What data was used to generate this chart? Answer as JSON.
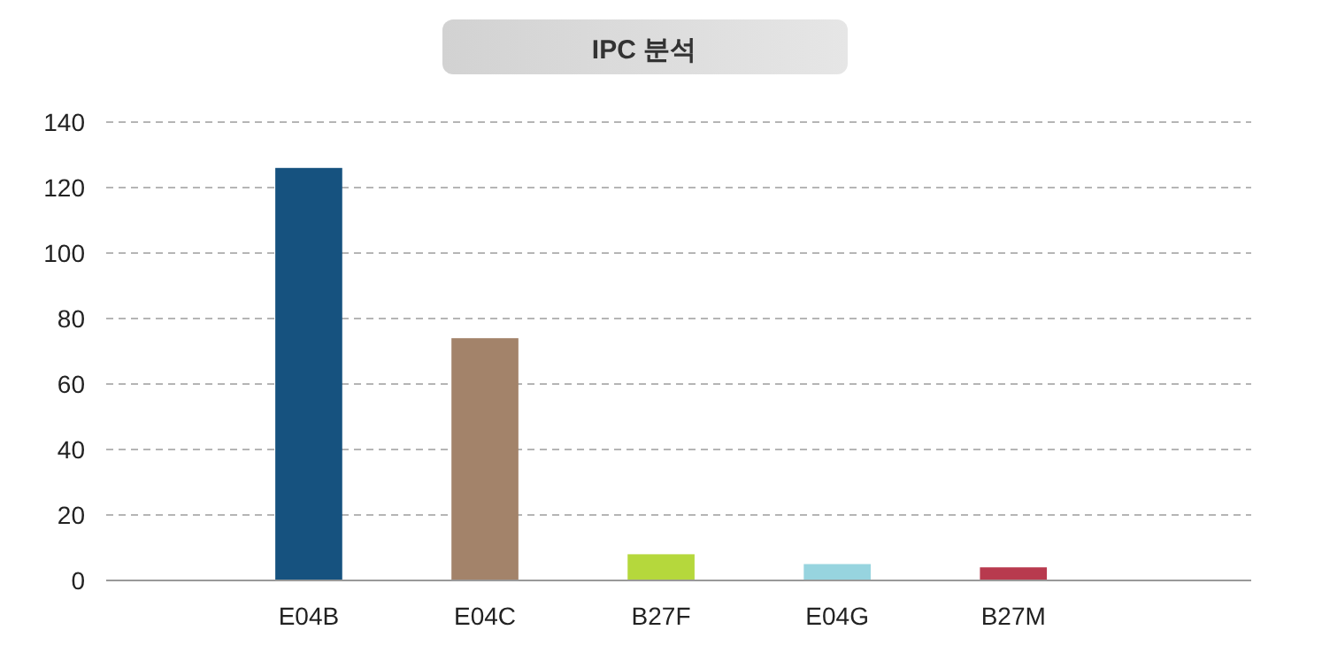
{
  "chart_data": {
    "type": "bar",
    "title": "IPC 분석",
    "categories": [
      "E04B",
      "E04C",
      "B27F",
      "E04G",
      "B27M"
    ],
    "values": [
      126,
      74,
      8,
      5,
      4
    ],
    "colors": [
      "#16527f",
      "#a3836a",
      "#b5d83c",
      "#97d4df",
      "#b83a4e"
    ],
    "ylim": [
      0,
      140
    ],
    "yticks": [
      0,
      20,
      40,
      60,
      80,
      100,
      120,
      140
    ],
    "grid": "y"
  }
}
